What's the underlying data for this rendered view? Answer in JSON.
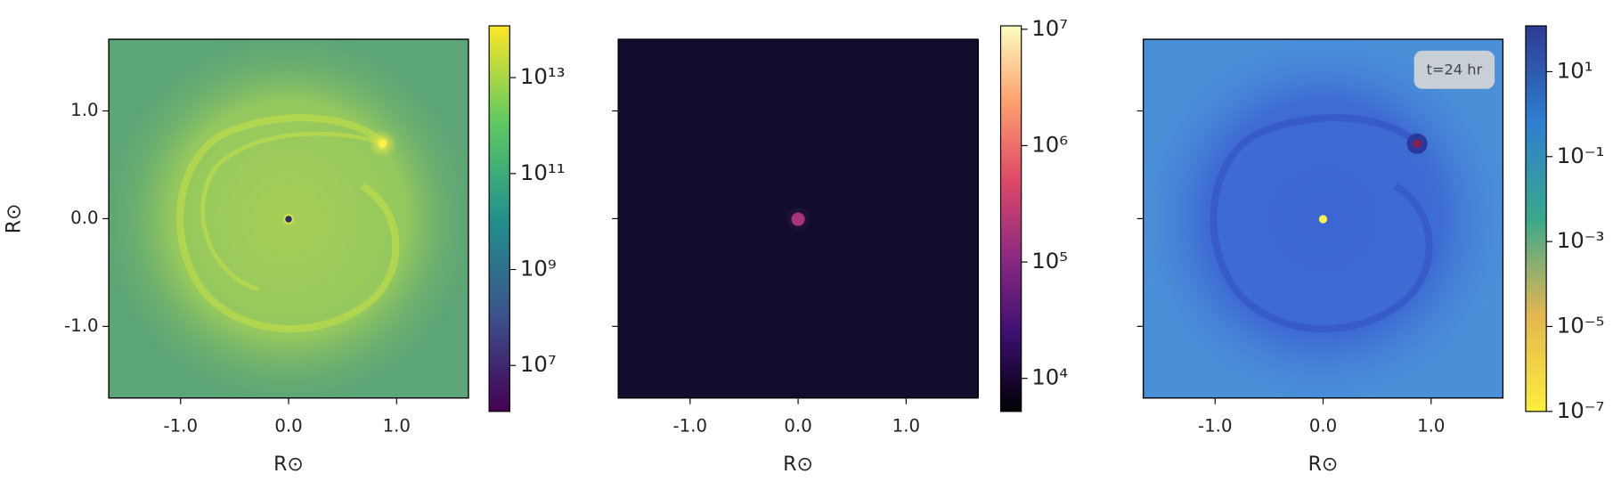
{
  "chart_data": [
    {
      "type": "heatmap",
      "xlabel": "R⊙",
      "ylabel": "R⊙",
      "xlim": [
        -1.665,
        1.665
      ],
      "ylim": [
        -1.665,
        1.665
      ],
      "xticks": [
        {
          "value": -1,
          "label": "-1.0"
        },
        {
          "value": 0,
          "label": "0.0"
        },
        {
          "value": 1,
          "label": "1.0"
        }
      ],
      "yticks": [
        {
          "value": -1,
          "label": "-1.0"
        },
        {
          "value": 0,
          "label": "0.0"
        },
        {
          "value": 1,
          "label": "1.0"
        }
      ],
      "colorbar": {
        "log": true,
        "lim": [
          1100000.0,
          120000000000000.0
        ],
        "ticks": [
          {
            "value": 10000000.0,
            "label": "10⁷"
          },
          {
            "value": 1000000000.0,
            "label": "10⁹"
          },
          {
            "value": 100000000000.0,
            "label": "10¹¹"
          },
          {
            "value": 10000000000000.0,
            "label": "10¹³"
          }
        ],
        "colors": [
          "#440154",
          "#3b528b",
          "#21918c",
          "#5ec962",
          "#fde725"
        ]
      }
    },
    {
      "type": "heatmap",
      "xlabel": "R⊙",
      "xlim": [
        -1.665,
        1.665
      ],
      "ylim": [
        -1.665,
        1.665
      ],
      "xticks": [
        {
          "value": -1,
          "label": "-1.0"
        },
        {
          "value": 0,
          "label": "0.0"
        },
        {
          "value": 1,
          "label": "1.0"
        }
      ],
      "yticks": [
        -1,
        0,
        1
      ],
      "ytick_labels": false,
      "colorbar": {
        "log": true,
        "lim": [
          5200.0,
          10700000.0
        ],
        "ticks": [
          {
            "value": 10000.0,
            "label": "10⁴"
          },
          {
            "value": 100000.0,
            "label": "10⁵"
          },
          {
            "value": 1000000.0,
            "label": "10⁶"
          },
          {
            "value": 10000000.0,
            "label": "10⁷"
          }
        ],
        "colors": [
          "#000004",
          "#3b0f70",
          "#8c2981",
          "#de4968",
          "#fe9f6d",
          "#fcfdbf"
        ]
      }
    },
    {
      "type": "heatmap",
      "xlabel": "R⊙",
      "annotation": "t=24 hr",
      "xlim": [
        -1.665,
        1.665
      ],
      "ylim": [
        -1.665,
        1.665
      ],
      "xticks": [
        {
          "value": -1,
          "label": "-1.0"
        },
        {
          "value": 0,
          "label": "0.0"
        },
        {
          "value": 1,
          "label": "1.0"
        }
      ],
      "yticks": [
        -1,
        0,
        1
      ],
      "ytick_labels": false,
      "colorbar": {
        "log": true,
        "lim": [
          1e-07,
          120.0
        ],
        "ticks": [
          {
            "value": 1e-07,
            "label": "10⁻⁷"
          },
          {
            "value": 1e-05,
            "label": "10⁻⁵"
          },
          {
            "value": 0.001,
            "label": "10⁻³"
          },
          {
            "value": 0.1,
            "label": "10⁻¹"
          },
          {
            "value": 10,
            "label": "10¹"
          }
        ],
        "colors": [
          "#fdee3c",
          "#e3b650",
          "#3aa88c",
          "#2f7fd0",
          "#2d3a92"
        ]
      }
    }
  ]
}
